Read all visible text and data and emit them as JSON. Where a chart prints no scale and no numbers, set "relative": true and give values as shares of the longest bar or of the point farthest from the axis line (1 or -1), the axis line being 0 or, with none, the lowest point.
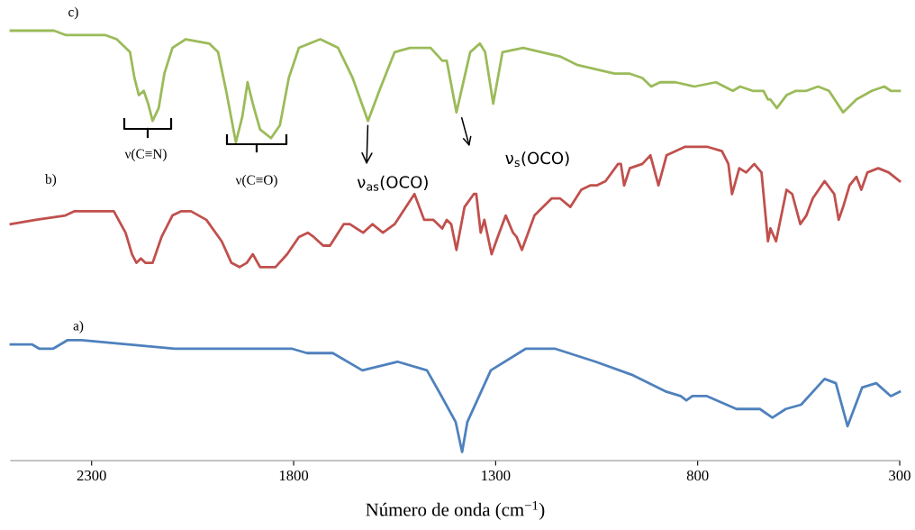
{
  "chart_data": {
    "type": "line",
    "relative": true,
    "xlabel": "Número de onda (cm$^{−1}$)",
    "xlim": [
      2500,
      300
    ],
    "xticks": [
      2300,
      1800,
      1300,
      800,
      300
    ],
    "grid": false,
    "legend": false,
    "tick_labels": "x",
    "line_style": "solid",
    "marker": "none",
    "series": [
      {
        "name": "a)",
        "color": "#4f81bd",
        "x": [
          2500,
          2447,
          2429,
          2413,
          2396,
          2360,
          2325,
          2094,
          1803,
          1767,
          1752,
          1703,
          1630,
          1543,
          1470,
          1434,
          1399,
          1383,
          1370,
          1312,
          1226,
          1152,
          1053,
          964,
          877,
          842,
          828,
          813,
          777,
          704,
          646,
          615,
          582,
          544,
          486,
          458,
          429,
          393,
          358,
          322,
          300
        ],
        "values": [
          0.27,
          0.27,
          0.26,
          0.26,
          0.26,
          0.28,
          0.28,
          0.26,
          0.26,
          0.25,
          0.25,
          0.25,
          0.21,
          0.23,
          0.21,
          0.15,
          0.09,
          0.02,
          0.09,
          0.21,
          0.26,
          0.26,
          0.23,
          0.2,
          0.16,
          0.15,
          0.14,
          0.15,
          0.15,
          0.12,
          0.12,
          0.1,
          0.12,
          0.13,
          0.19,
          0.18,
          0.08,
          0.17,
          0.18,
          0.15,
          0.16
        ]
      },
      {
        "name": "b)",
        "color": "#c0504d",
        "x": [
          2500,
          2438,
          2365,
          2342,
          2267,
          2245,
          2216,
          2200,
          2189,
          2178,
          2167,
          2149,
          2127,
          2100,
          2078,
          2054,
          2016,
          1978,
          1954,
          1934,
          1916,
          1901,
          1883,
          1845,
          1816,
          1787,
          1765,
          1750,
          1727,
          1710,
          1676,
          1661,
          1628,
          1605,
          1579,
          1550,
          1501,
          1477,
          1454,
          1432,
          1421,
          1410,
          1397,
          1377,
          1354,
          1348,
          1337,
          1328,
          1310,
          1295,
          1275,
          1257,
          1248,
          1235,
          1204,
          1161,
          1141,
          1115,
          1088,
          1066,
          1050,
          1028,
          997,
          990,
          982,
          968,
          937,
          917,
          897,
          877,
          831,
          777,
          740,
          724,
          715,
          697,
          680,
          660,
          642,
          626,
          620,
          606,
          580,
          566,
          546,
          531,
          515,
          486,
          462,
          451,
          440,
          424,
          407,
          395,
          380,
          353,
          327,
          300
        ],
        "values": [
          0.55,
          0.56,
          0.57,
          0.58,
          0.58,
          0.58,
          0.53,
          0.48,
          0.46,
          0.47,
          0.46,
          0.46,
          0.52,
          0.57,
          0.58,
          0.58,
          0.56,
          0.51,
          0.46,
          0.45,
          0.46,
          0.48,
          0.45,
          0.45,
          0.48,
          0.52,
          0.53,
          0.52,
          0.5,
          0.5,
          0.55,
          0.55,
          0.53,
          0.55,
          0.53,
          0.55,
          0.62,
          0.56,
          0.56,
          0.54,
          0.56,
          0.55,
          0.49,
          0.59,
          0.62,
          0.62,
          0.53,
          0.56,
          0.48,
          0.52,
          0.57,
          0.53,
          0.52,
          0.49,
          0.57,
          0.61,
          0.61,
          0.59,
          0.63,
          0.64,
          0.64,
          0.65,
          0.69,
          0.69,
          0.64,
          0.68,
          0.69,
          0.71,
          0.64,
          0.71,
          0.73,
          0.73,
          0.72,
          0.69,
          0.62,
          0.68,
          0.67,
          0.69,
          0.67,
          0.51,
          0.54,
          0.51,
          0.63,
          0.62,
          0.55,
          0.57,
          0.61,
          0.65,
          0.62,
          0.56,
          0.59,
          0.64,
          0.66,
          0.63,
          0.67,
          0.68,
          0.67,
          0.65
        ]
      },
      {
        "name": "c)",
        "color": "#9bbb59",
        "x": [
          2500,
          2393,
          2365,
          2349,
          2267,
          2238,
          2216,
          2205,
          2194,
          2183,
          2171,
          2160,
          2149,
          2134,
          2120,
          2100,
          2067,
          2009,
          1987,
          1967,
          1943,
          1927,
          1914,
          1901,
          1883,
          1856,
          1834,
          1812,
          1787,
          1734,
          1690,
          1654,
          1616,
          1588,
          1550,
          1512,
          1461,
          1432,
          1421,
          1397,
          1363,
          1339,
          1326,
          1306,
          1283,
          1232,
          1141,
          1097,
          1006,
          984,
          968,
          937,
          915,
          893,
          855,
          808,
          755,
          713,
          695,
          664,
          637,
          626,
          620,
          604,
          580,
          557,
          531,
          502,
          475,
          440,
          407,
          369,
          338,
          322,
          300
        ],
        "values": [
          1.0,
          1.0,
          0.99,
          0.99,
          0.99,
          0.98,
          0.96,
          0.95,
          0.89,
          0.85,
          0.86,
          0.83,
          0.79,
          0.82,
          0.9,
          0.96,
          0.98,
          0.97,
          0.95,
          0.86,
          0.74,
          0.8,
          0.88,
          0.83,
          0.77,
          0.75,
          0.78,
          0.89,
          0.96,
          0.98,
          0.96,
          0.89,
          0.79,
          0.86,
          0.95,
          0.96,
          0.96,
          0.93,
          0.93,
          0.81,
          0.95,
          0.97,
          0.95,
          0.83,
          0.95,
          0.96,
          0.94,
          0.92,
          0.9,
          0.9,
          0.9,
          0.89,
          0.87,
          0.88,
          0.88,
          0.87,
          0.88,
          0.86,
          0.87,
          0.86,
          0.86,
          0.84,
          0.84,
          0.82,
          0.85,
          0.86,
          0.86,
          0.87,
          0.86,
          0.81,
          0.84,
          0.86,
          0.87,
          0.86,
          0.86
        ]
      }
    ],
    "annotations": [
      "ν(C≡N)",
      "ν(C≡O)",
      {
        "text": "ν$_{as}$(OCO)",
        "x": 1616,
        "y": 0.79
      },
      "ν$_{s}$(OCO)"
    ]
  }
}
